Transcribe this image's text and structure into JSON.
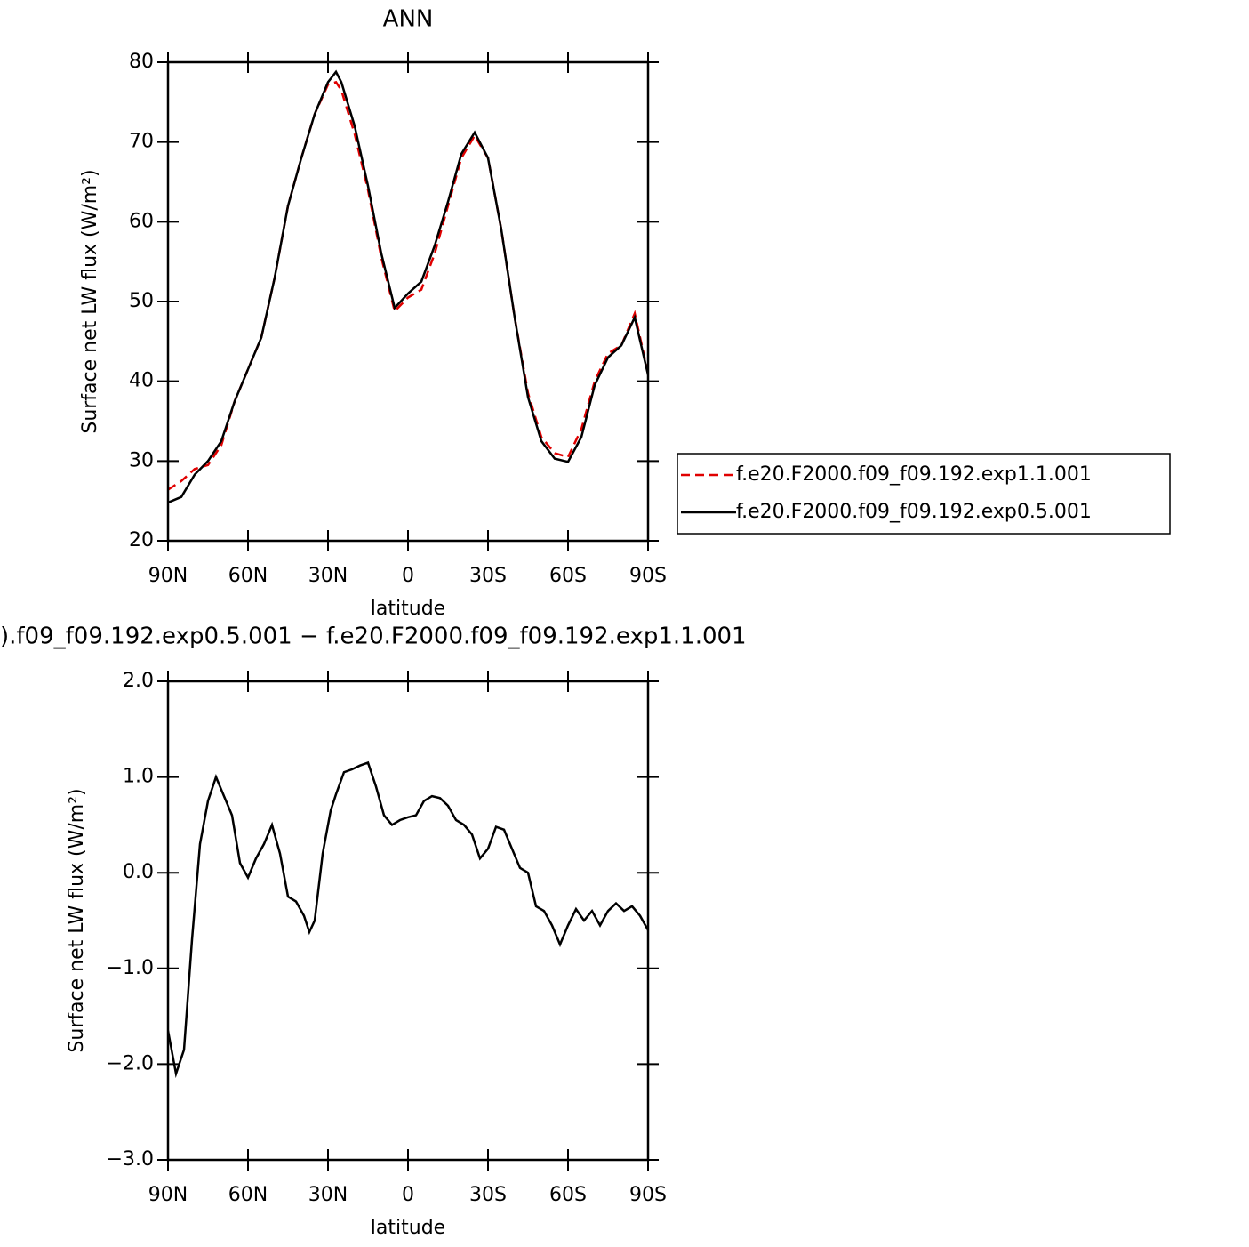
{
  "chart_data": [
    {
      "type": "line",
      "title": "ANN",
      "xlabel": "latitude",
      "ylabel": "Surface net LW flux (W/m²)",
      "x": [
        90,
        85,
        80,
        75,
        70,
        65,
        60,
        55,
        50,
        45,
        40,
        35,
        30,
        27,
        25,
        20,
        15,
        10,
        5,
        0,
        -5,
        -10,
        -15,
        -20,
        -25,
        -30,
        -35,
        -40,
        -45,
        -50,
        -55,
        -60,
        -65,
        -70,
        -75,
        -80,
        -85,
        -90
      ],
      "series": [
        {
          "name": "f.e20.F2000.f09_f09.192.exp1.1.001",
          "color": "#e00000",
          "line_style": "dashed",
          "values": [
            26.4,
            27.5,
            29,
            29.5,
            32,
            37.5,
            41.5,
            45.5,
            53,
            62,
            68,
            73.5,
            77.2,
            77.5,
            76.5,
            71,
            64,
            55.5,
            48.8,
            50.5,
            51.5,
            56,
            62,
            68,
            70.8,
            68,
            59,
            48,
            38.5,
            33,
            31,
            30.5,
            34,
            40,
            43.5,
            44.5,
            48.5,
            41
          ]
        },
        {
          "name": "f.e20.F2000.f09_f09.192.exp0.5.001",
          "color": "#000000",
          "line_style": "solid",
          "values": [
            24.8,
            25.5,
            28.3,
            30,
            32.5,
            37.5,
            41.5,
            45.5,
            53,
            62,
            68,
            73.5,
            77.5,
            78.8,
            77.5,
            72,
            64.5,
            56,
            49.2,
            51,
            52.5,
            57,
            62.5,
            68.5,
            71.2,
            68,
            59,
            48,
            38,
            32.5,
            30.3,
            29.9,
            33,
            39.5,
            43,
            44.5,
            48,
            40.8
          ]
        }
      ],
      "xlim": [
        90,
        -90
      ],
      "xticks": [
        {
          "value": 90,
          "label": "90N"
        },
        {
          "value": 60,
          "label": "60N"
        },
        {
          "value": 30,
          "label": "30N"
        },
        0,
        {
          "value": -30,
          "label": "30S"
        },
        {
          "value": -60,
          "label": "60S"
        },
        {
          "value": -90,
          "label": "90S"
        }
      ],
      "ylim": [
        20,
        80
      ],
      "yticks": [
        20,
        30,
        40,
        50,
        60,
        70,
        80
      ],
      "legend": "right"
    },
    {
      "type": "line",
      "title": ").f09_f09.192.exp0.5.001 − f.e20.F2000.f09_f09.192.exp1.1.001",
      "xlabel": "latitude",
      "ylabel": "Surface net LW flux (W/m²)",
      "x": [
        90,
        87,
        84,
        81,
        78,
        75,
        72,
        69,
        66,
        63,
        60,
        57,
        54,
        51,
        48,
        45,
        42,
        39,
        37,
        35,
        32,
        29,
        27,
        24,
        21,
        18,
        15,
        12,
        9,
        6,
        3,
        0,
        -3,
        -6,
        -9,
        -12,
        -15,
        -18,
        -21,
        -24,
        -27,
        -30,
        -33,
        -36,
        -39,
        -42,
        -45,
        -48,
        -51,
        -54,
        -57,
        -60,
        -63,
        -66,
        -69,
        -72,
        -75,
        -78,
        -81,
        -84,
        -87,
        -90
      ],
      "series": [
        {
          "color": "#000000",
          "line_style": "solid",
          "values": [
            -1.65,
            -2.1,
            -1.85,
            -0.7,
            0.3,
            0.75,
            1.0,
            0.8,
            0.6,
            0.1,
            -0.05,
            0.15,
            0.3,
            0.5,
            0.2,
            -0.25,
            -0.3,
            -0.45,
            -0.62,
            -0.5,
            0.2,
            0.65,
            0.82,
            1.05,
            1.08,
            1.12,
            1.15,
            0.9,
            0.6,
            0.5,
            0.55,
            0.58,
            0.6,
            0.75,
            0.8,
            0.78,
            0.7,
            0.55,
            0.5,
            0.4,
            0.15,
            0.25,
            0.48,
            0.45,
            0.25,
            0.05,
            0.0,
            -0.35,
            -0.4,
            -0.55,
            -0.75,
            -0.55,
            -0.38,
            -0.5,
            -0.4,
            -0.55,
            -0.4,
            -0.32,
            -0.4,
            -0.35,
            -0.45,
            -0.6
          ]
        }
      ],
      "xlim": [
        90,
        -90
      ],
      "xticks": [
        {
          "value": 90,
          "label": "90N"
        },
        {
          "value": 60,
          "label": "60N"
        },
        {
          "value": 30,
          "label": "30N"
        },
        0,
        {
          "value": -30,
          "label": "30S"
        },
        {
          "value": -60,
          "label": "60S"
        },
        {
          "value": -90,
          "label": "90S"
        }
      ],
      "ylim": [
        -3,
        2
      ],
      "yticks": [
        {
          "value": -3,
          "label": "−3.0"
        },
        {
          "value": -2,
          "label": "−2.0"
        },
        {
          "value": -1,
          "label": "−1.0"
        },
        {
          "value": 0,
          "label": "0.0"
        },
        {
          "value": 1,
          "label": "1.0"
        },
        {
          "value": 2,
          "label": "2.0"
        }
      ]
    }
  ]
}
